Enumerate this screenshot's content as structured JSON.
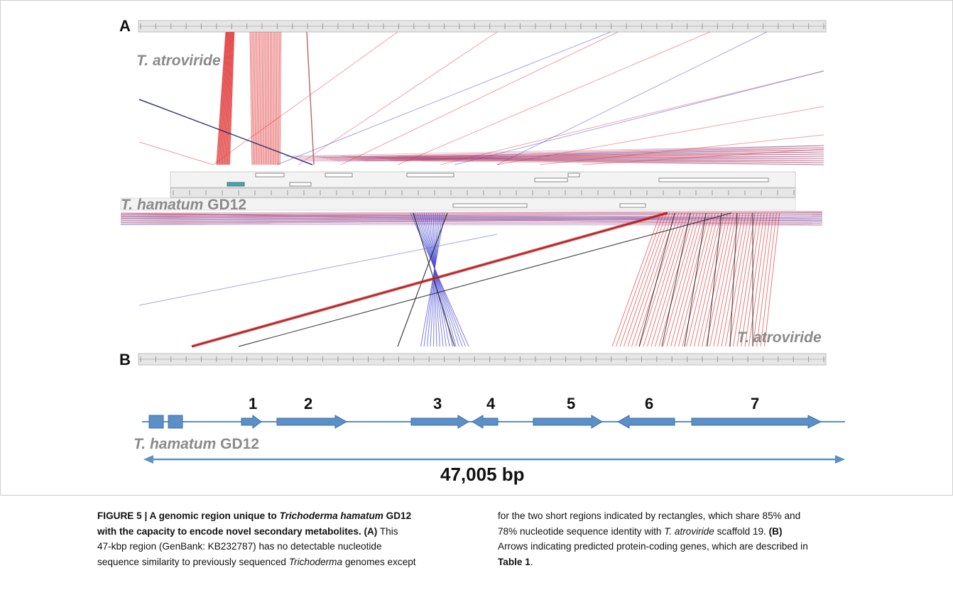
{
  "figure": {
    "panel_a": "A",
    "panel_b": "B",
    "organism_top": "T. atroviride",
    "organism_mid_italic": "T. hamatum",
    "organism_mid_plain": "GD12",
    "organism_bottom": "T. atroviride",
    "organism_b_italic": "T. hamatum",
    "organism_b_plain": "GD12",
    "gene_numbers": [
      "1",
      "2",
      "3",
      "4",
      "5",
      "6",
      "7"
    ],
    "length_label": "47,005 bp",
    "colors": {
      "forward": "#e03030",
      "reverse": "#4a4ad8",
      "gene": "#5b8fc7",
      "ruler": "#d4d4d4"
    }
  },
  "caption": {
    "col1_title": "FIGURE 5 | A genomic region unique to ",
    "col1_title_italic": "Trichoderma hamatum",
    "col1_title_end": " GD12",
    "col1_line2": "with the capacity to encode novel secondary metabolites. (A)",
    "col1_line2_tail": " This",
    "col1_line3": "47-kbp region (GenBank: KB232787) has no detectable nucleotide",
    "col1_line4_a": "sequence similarity to previously sequenced ",
    "col1_line4_italic": "Trichoderma",
    "col1_line4_b": " genomes except",
    "col2_line1": "for the two short regions indicated by rectangles, which share 85% and",
    "col2_line2_a": "78% nucleotide sequence identity with ",
    "col2_line2_italic": "T. atroviride",
    "col2_line2_b": " scaffold 19. ",
    "col2_line2_bold": "(B)",
    "col2_line3": "Arrows indicating predicted protein-coding genes, which are described in",
    "col2_line4_bold": "Table 1",
    "col2_line4_end": "."
  }
}
